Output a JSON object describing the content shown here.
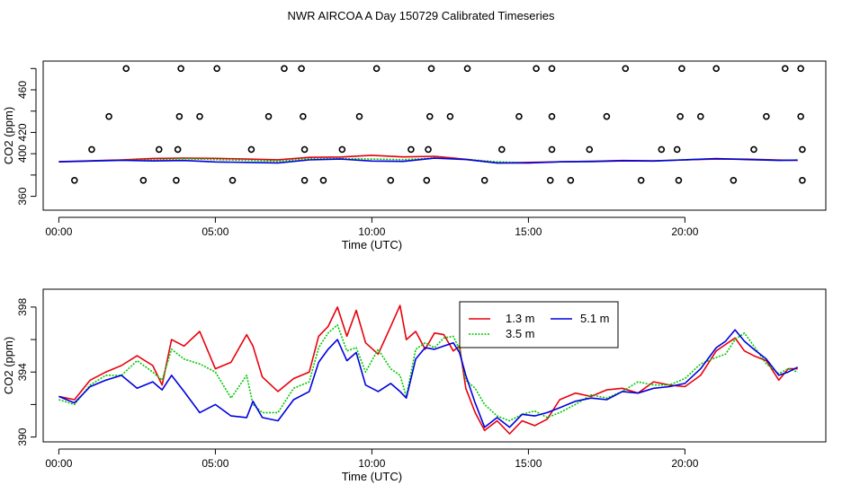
{
  "figure": {
    "title": "NWR AIRCOA A  Day 150729  Calibrated Timeseries"
  },
  "colors": {
    "s1": "#e8000b",
    "s2": "#00c800",
    "s3": "#0000e0",
    "axis": "#000000",
    "marker": "#000000"
  },
  "chart_data": [
    {
      "type": "scatter+line",
      "title": "",
      "xlabel": "Time (UTC)",
      "ylabel": "CO2 (ppm)",
      "xlim": [
        -0.5,
        24.5
      ],
      "ylim": [
        347,
        487
      ],
      "x_ticks": [
        0,
        5,
        10,
        15,
        20
      ],
      "x_tick_labels": [
        "00:00",
        "05:00",
        "10:00",
        "15:00",
        "20:00"
      ],
      "y_ticks": [
        360,
        380,
        400,
        420,
        440,
        460,
        480
      ],
      "y_tick_labels": [
        "360",
        "",
        "400",
        "420",
        "",
        "460",
        ""
      ],
      "grid": false,
      "markers": {
        "x": [
          0.5,
          2.7,
          3.75,
          5.55,
          7.85,
          8.45,
          10.6,
          11.75,
          13.6,
          15.7,
          16.35,
          18.6,
          19.8,
          21.55,
          23.75,
          1.05,
          3.2,
          3.8,
          6.15,
          7.85,
          9.05,
          11.25,
          11.8,
          14.15,
          15.75,
          16.95,
          19.25,
          19.75,
          22.2,
          23.75,
          1.6,
          3.85,
          4.5,
          6.7,
          7.8,
          9.6,
          11.85,
          12.5,
          14.7,
          15.75,
          17.5,
          19.85,
          20.5,
          22.6,
          23.7,
          2.15,
          3.9,
          5.05,
          7.2,
          7.75,
          10.15,
          11.9,
          13.05,
          15.25,
          15.75,
          18.1,
          19.9,
          21.0,
          23.2,
          23.7
        ],
        "y": [
          375,
          375,
          375,
          375,
          375,
          375,
          375,
          375,
          375,
          375,
          375,
          375,
          375,
          375,
          375,
          404,
          404,
          404,
          404,
          404,
          404,
          404,
          404,
          404,
          404,
          404,
          404,
          404,
          404,
          404,
          435,
          435,
          435,
          435,
          435,
          435,
          435,
          435,
          435,
          435,
          435,
          435,
          435,
          435,
          435,
          480,
          480,
          480,
          480,
          480,
          480,
          480,
          480,
          480,
          480,
          480,
          480,
          480,
          480,
          480
        ]
      },
      "series": [
        {
          "name": "1.3 m",
          "color_key": "s1",
          "x": [
            0,
            1,
            2,
            3,
            4,
            5,
            6,
            7,
            8,
            9,
            10,
            11,
            12,
            13,
            14,
            15,
            16,
            17,
            18,
            19,
            20,
            21,
            22,
            23,
            23.6
          ],
          "values": [
            392.6,
            393.3,
            394.2,
            395.6,
            395.8,
            395.7,
            395.0,
            394.3,
            396.6,
            396.9,
            398.5,
            397.0,
            397.6,
            394.8,
            391.3,
            391.9,
            392.4,
            393.0,
            393.6,
            393.4,
            394.2,
            395.0,
            394.9,
            394.1,
            393.8
          ]
        },
        {
          "name": "3.5 m",
          "color_key": "s2",
          "x": [
            0,
            1,
            2,
            3,
            4,
            5,
            6,
            7,
            8,
            9,
            10,
            11,
            12,
            13,
            14,
            15,
            16,
            17,
            18,
            19,
            20,
            21,
            22,
            23,
            23.6
          ],
          "values": [
            392.4,
            393.2,
            394.0,
            394.0,
            395.2,
            394.5,
            393.9,
            392.9,
            395.2,
            395.6,
            395.0,
            394.4,
            396.0,
            394.7,
            392.4,
            391.4,
            392.4,
            393.0,
            393.2,
            393.2,
            394.4,
            395.2,
            394.7,
            393.9,
            394.1
          ]
        },
        {
          "name": "5.1 m",
          "color_key": "s3",
          "x": [
            0,
            1,
            2,
            3,
            4,
            5,
            6,
            7,
            8,
            9,
            10,
            11,
            12,
            13,
            14,
            15,
            16,
            17,
            18,
            19,
            20,
            21,
            22,
            23,
            23.6
          ],
          "values": [
            392.4,
            393.1,
            393.8,
            393.2,
            393.6,
            392.3,
            391.9,
            391.4,
            394.2,
            395.0,
            393.1,
            392.8,
            395.8,
            394.6,
            391.4,
            391.4,
            392.4,
            392.6,
            393.3,
            393.1,
            394.2,
            395.4,
            394.5,
            393.7,
            394.0
          ]
        }
      ]
    },
    {
      "type": "line",
      "title": "",
      "xlabel": "Time (UTC)",
      "ylabel": "CO2 (ppm)",
      "xlim": [
        -0.5,
        24.5
      ],
      "ylim": [
        389.7,
        399.1
      ],
      "x_ticks": [
        0,
        5,
        10,
        15,
        20
      ],
      "x_tick_labels": [
        "00:00",
        "05:00",
        "10:00",
        "15:00",
        "20:00"
      ],
      "y_ticks": [
        390,
        392,
        394,
        396,
        398
      ],
      "y_tick_labels": [
        "390",
        "",
        "394",
        "",
        "398"
      ],
      "grid": false,
      "legend": {
        "position": "top-center",
        "entries": [
          "1.3 m",
          "5.1 m",
          "3.5 m"
        ]
      },
      "series": [
        {
          "name": "1.3 m",
          "color_key": "s1",
          "x": [
            0,
            0.5,
            1,
            1.5,
            2,
            2.5,
            3,
            3.3,
            3.6,
            4,
            4.5,
            5,
            5.5,
            6,
            6.2,
            6.5,
            7,
            7.5,
            8,
            8.3,
            8.6,
            8.9,
            9.2,
            9.5,
            9.8,
            10.2,
            10.6,
            10.9,
            11.1,
            11.4,
            11.7,
            12,
            12.3,
            12.6,
            12.8,
            13,
            13.3,
            13.6,
            14,
            14.4,
            14.8,
            15.2,
            15.6,
            16,
            16.5,
            17,
            17.5,
            18,
            18.5,
            19,
            19.5,
            20,
            20.5,
            21,
            21.3,
            21.6,
            21.9,
            22.2,
            22.6,
            23,
            23.3,
            23.6
          ],
          "values": [
            392.5,
            392.3,
            393.5,
            394.0,
            394.4,
            395.0,
            394.4,
            393.2,
            396.0,
            395.6,
            396.5,
            394.2,
            394.6,
            396.3,
            395.6,
            393.7,
            392.8,
            393.6,
            394.0,
            396.2,
            396.8,
            398.0,
            396.2,
            397.8,
            395.8,
            395.1,
            396.8,
            398.1,
            396.0,
            396.5,
            395.4,
            396.4,
            396.3,
            395.3,
            395.6,
            393.0,
            391.5,
            390.4,
            391.0,
            390.2,
            391.0,
            390.7,
            391.1,
            392.3,
            392.7,
            392.5,
            392.9,
            393.0,
            392.7,
            393.4,
            393.2,
            393.1,
            393.8,
            395.3,
            395.7,
            396.1,
            395.3,
            395.0,
            394.7,
            393.5,
            394.2,
            394.2
          ]
        },
        {
          "name": "3.5 m",
          "color_key": "s2",
          "x": [
            0,
            0.5,
            1,
            1.5,
            2,
            2.5,
            3,
            3.3,
            3.6,
            4,
            4.5,
            5,
            5.5,
            6,
            6.2,
            6.5,
            7,
            7.5,
            8,
            8.3,
            8.6,
            8.9,
            9.2,
            9.5,
            9.8,
            10.2,
            10.6,
            10.9,
            11.1,
            11.4,
            11.7,
            12,
            12.3,
            12.6,
            12.8,
            13,
            13.3,
            13.6,
            14,
            14.4,
            14.8,
            15.2,
            15.6,
            16,
            16.5,
            17,
            17.5,
            18,
            18.5,
            19,
            19.5,
            20,
            20.5,
            21,
            21.3,
            21.6,
            21.9,
            22.2,
            22.6,
            23,
            23.3,
            23.6
          ],
          "values": [
            392.3,
            392.0,
            393.2,
            393.8,
            393.8,
            394.7,
            394.0,
            393.5,
            395.4,
            394.8,
            394.5,
            394.0,
            392.4,
            393.8,
            392.0,
            391.5,
            391.5,
            393.0,
            393.4,
            395.5,
            396.4,
            396.9,
            395.3,
            395.5,
            394.0,
            395.4,
            394.2,
            393.8,
            392.5,
            395.4,
            395.8,
            395.5,
            396.1,
            396.2,
            395.4,
            393.5,
            393.0,
            392.0,
            391.3,
            391.0,
            391.4,
            391.6,
            391.2,
            391.5,
            392.0,
            392.6,
            392.4,
            392.8,
            393.4,
            393.2,
            393.2,
            393.6,
            394.5,
            394.9,
            395.1,
            396.0,
            396.4,
            395.6,
            394.5,
            393.9,
            394.2,
            394.0
          ]
        },
        {
          "name": "5.1 m",
          "color_key": "s3",
          "x": [
            0,
            0.5,
            1,
            1.5,
            2,
            2.5,
            3,
            3.3,
            3.6,
            4,
            4.5,
            5,
            5.5,
            6,
            6.2,
            6.5,
            7,
            7.5,
            8,
            8.3,
            8.6,
            8.9,
            9.2,
            9.5,
            9.8,
            10.2,
            10.6,
            10.9,
            11.1,
            11.4,
            11.7,
            12,
            12.3,
            12.6,
            12.8,
            13,
            13.3,
            13.6,
            14,
            14.4,
            14.8,
            15.2,
            15.6,
            16,
            16.5,
            17,
            17.5,
            18,
            18.5,
            19,
            19.5,
            20,
            20.5,
            21,
            21.3,
            21.6,
            21.9,
            22.2,
            22.6,
            23,
            23.3,
            23.6
          ],
          "values": [
            392.5,
            392.1,
            393.1,
            393.5,
            393.8,
            393.0,
            393.4,
            392.9,
            393.8,
            392.8,
            391.5,
            392.0,
            391.3,
            391.2,
            392.2,
            391.2,
            391.0,
            392.3,
            392.8,
            394.6,
            395.4,
            396.0,
            394.7,
            395.2,
            393.2,
            392.8,
            393.3,
            392.8,
            392.4,
            394.8,
            395.5,
            395.4,
            395.6,
            395.8,
            395.2,
            393.8,
            392.1,
            390.6,
            391.2,
            390.6,
            391.4,
            391.3,
            391.5,
            391.8,
            392.2,
            392.4,
            392.3,
            392.8,
            392.7,
            393.0,
            393.1,
            393.3,
            394.2,
            395.5,
            395.9,
            396.6,
            395.9,
            395.4,
            394.8,
            393.8,
            394.0,
            394.3
          ]
        }
      ]
    }
  ]
}
